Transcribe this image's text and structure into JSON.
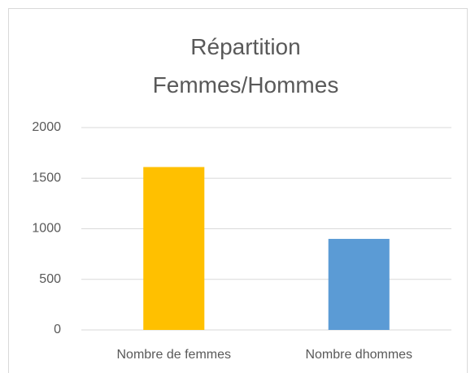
{
  "chart_data": {
    "type": "bar",
    "title": "Répartition Femmes/Hommes",
    "categories": [
      "Nombre de femmes",
      "Nombre dhommes"
    ],
    "values": [
      1610,
      900
    ],
    "colors": [
      "#ffc000",
      "#5b9bd5"
    ],
    "ylim": [
      0,
      2000
    ],
    "yticks": [
      0,
      500,
      1000,
      1500,
      2000
    ],
    "grid": true
  }
}
